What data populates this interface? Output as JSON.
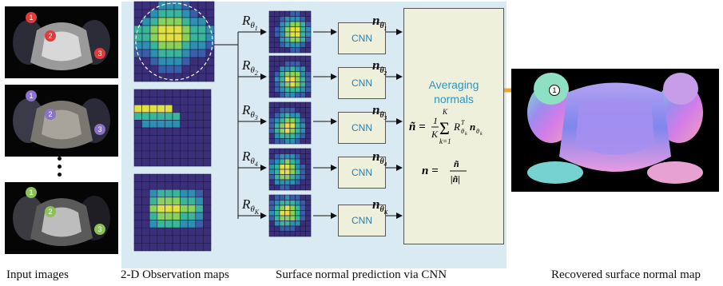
{
  "captions": {
    "input_images": "Input images",
    "observation_maps": "2-D Observation maps",
    "cnn_prediction": "Surface normal prediction via CNN",
    "recovered_map": "Recovered surface normal map"
  },
  "rotations": [
    {
      "r_base": "R",
      "r_sub": "θ",
      "r_subsub": "1",
      "n_base": "n",
      "n_sub": "θ",
      "n_subsub": "1"
    },
    {
      "r_base": "R",
      "r_sub": "θ",
      "r_subsub": "2",
      "n_base": "n",
      "n_sub": "θ",
      "n_subsub": "2"
    },
    {
      "r_base": "R",
      "r_sub": "θ",
      "r_subsub": "3",
      "n_base": "n",
      "n_sub": "θ",
      "n_subsub": "3"
    },
    {
      "r_base": "R",
      "r_sub": "θ",
      "r_subsub": "4",
      "n_base": "n",
      "n_sub": "θ",
      "n_subsub": "4"
    },
    {
      "r_base": "R",
      "r_sub": "θ",
      "r_subsub": "K",
      "n_base": "n",
      "n_sub": "θ",
      "n_subsub": "K"
    }
  ],
  "cnn_label": "CNN",
  "averaging": {
    "line1": "Averaging",
    "line2": "normals"
  },
  "formula": {
    "lhs1": "ñ =",
    "frac_num": "1",
    "frac_den": "K",
    "sum_top": "K",
    "sum_bottom": "k=1",
    "term": "R",
    "term_sup": "T",
    "term_sub": "θ",
    "term_subsub": "k",
    "term_n": "n",
    "term_n_sub": "θ",
    "term_n_subsub": "k",
    "lhs2": "n =",
    "num2": "ñ",
    "den2": "|ñ|"
  },
  "markers": {
    "one": "1",
    "two": "2",
    "three": "3"
  },
  "colors": {
    "marker_red": "#e23b3b",
    "marker_purple": "#8a72c8",
    "marker_green": "#8cc05a",
    "arrow_orange": "#f2a81d",
    "map_bg": "#3b2f7a",
    "map_grid": "#1c1c4a"
  }
}
